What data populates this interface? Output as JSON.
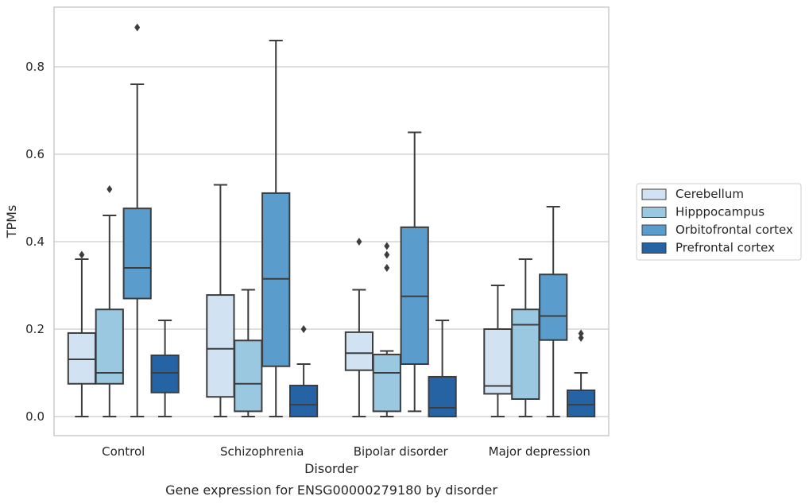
{
  "chart_data": {
    "type": "boxplot",
    "title": "",
    "caption": "Gene expression for ENSG00000279180 by disorder",
    "xlabel": "Disorder",
    "ylabel": "TPMs",
    "ylim": [
      -0.043,
      0.94
    ],
    "yticks": [
      0.0,
      0.2,
      0.4,
      0.6,
      0.8
    ],
    "ytick_labels": [
      "0.0",
      "0.2",
      "0.4",
      "0.6",
      "0.8"
    ],
    "grid": "horizontal",
    "legend_placement": "right-outside",
    "categories": [
      "Control",
      "Schizophrenia",
      "Bipolar disorder",
      "Major depression"
    ],
    "series": [
      {
        "name": "Cerebellum",
        "color": "#d1e2f2",
        "boxes": [
          {
            "whislo": 0.0,
            "q1": 0.075,
            "med": 0.131,
            "q3": 0.191,
            "whishi": 0.36,
            "fliers": [
              0.37
            ]
          },
          {
            "whislo": 0.0,
            "q1": 0.045,
            "med": 0.155,
            "q3": 0.278,
            "whishi": 0.53,
            "fliers": []
          },
          {
            "whislo": 0.0,
            "q1": 0.106,
            "med": 0.145,
            "q3": 0.193,
            "whishi": 0.29,
            "fliers": [
              0.4
            ]
          },
          {
            "whislo": 0.0,
            "q1": 0.052,
            "med": 0.07,
            "q3": 0.2,
            "whishi": 0.3,
            "fliers": []
          }
        ]
      },
      {
        "name": "Hipppocampus",
        "color": "#9ac8e0",
        "boxes": [
          {
            "whislo": 0.0,
            "q1": 0.075,
            "med": 0.1,
            "q3": 0.245,
            "whishi": 0.46,
            "fliers": [
              0.52
            ]
          },
          {
            "whislo": 0.0,
            "q1": 0.012,
            "med": 0.075,
            "q3": 0.174,
            "whishi": 0.29,
            "fliers": []
          },
          {
            "whislo": 0.0,
            "q1": 0.012,
            "med": 0.1,
            "q3": 0.142,
            "whishi": 0.15,
            "fliers": [
              0.34,
              0.37,
              0.39
            ]
          },
          {
            "whislo": 0.0,
            "q1": 0.04,
            "med": 0.21,
            "q3": 0.245,
            "whishi": 0.36,
            "fliers": []
          }
        ]
      },
      {
        "name": "Orbitofrontal cortex",
        "color": "#5a9dcc",
        "boxes": [
          {
            "whislo": 0.0,
            "q1": 0.27,
            "med": 0.34,
            "q3": 0.476,
            "whishi": 0.76,
            "fliers": [
              0.89
            ]
          },
          {
            "whislo": 0.0,
            "q1": 0.115,
            "med": 0.315,
            "q3": 0.511,
            "whishi": 0.86,
            "fliers": []
          },
          {
            "whislo": 0.012,
            "q1": 0.12,
            "med": 0.275,
            "q3": 0.433,
            "whishi": 0.65,
            "fliers": []
          },
          {
            "whislo": 0.0,
            "q1": 0.175,
            "med": 0.23,
            "q3": 0.325,
            "whishi": 0.48,
            "fliers": []
          }
        ]
      },
      {
        "name": "Prefrontal cortex",
        "color": "#2563a5",
        "boxes": [
          {
            "whislo": 0.0,
            "q1": 0.055,
            "med": 0.1,
            "q3": 0.14,
            "whishi": 0.22,
            "fliers": []
          },
          {
            "whislo": 0.0,
            "q1": 0.0,
            "med": 0.027,
            "q3": 0.071,
            "whishi": 0.12,
            "fliers": [
              0.2
            ]
          },
          {
            "whislo": 0.0,
            "q1": 0.0,
            "med": 0.02,
            "q3": 0.091,
            "whishi": 0.22,
            "fliers": []
          },
          {
            "whislo": 0.0,
            "q1": 0.0,
            "med": 0.027,
            "q3": 0.06,
            "whishi": 0.1,
            "fliers": [
              0.18,
              0.19
            ]
          }
        ]
      }
    ]
  }
}
